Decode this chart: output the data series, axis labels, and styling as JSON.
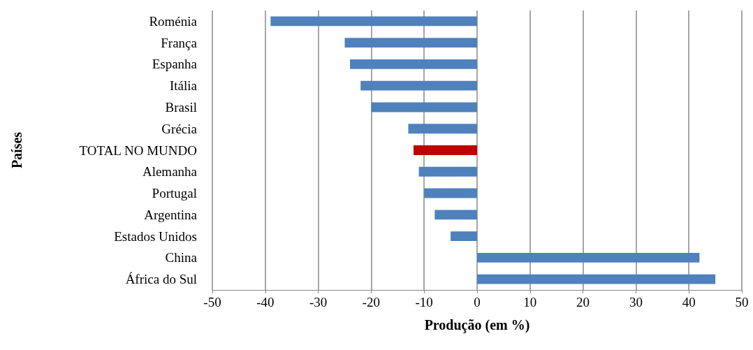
{
  "chart_data": {
    "type": "bar",
    "orientation": "horizontal",
    "xlabel": "Produção (em %)",
    "ylabel": "Países",
    "categories": [
      "Roménia",
      "França",
      "Espanha",
      "Itália",
      "Brasil",
      "Grécia",
      "TOTAL NO MUNDO",
      "Alemanha",
      "Portugal",
      "Argentina",
      "Estados Unidos",
      "China",
      "África do Sul"
    ],
    "values": [
      -39,
      -25,
      -24,
      -22,
      -20,
      -13,
      -12,
      -11,
      -10,
      -8,
      -5,
      42,
      45
    ],
    "colors": [
      "#4f81bd",
      "#4f81bd",
      "#4f81bd",
      "#4f81bd",
      "#4f81bd",
      "#4f81bd",
      "#c00000",
      "#4f81bd",
      "#4f81bd",
      "#4f81bd",
      "#4f81bd",
      "#4f81bd",
      "#4f81bd"
    ],
    "xlim": [
      -50,
      50
    ],
    "xticks": [
      -50,
      -40,
      -30,
      -20,
      -10,
      0,
      10,
      20,
      30,
      40,
      50
    ],
    "grid": "x"
  }
}
